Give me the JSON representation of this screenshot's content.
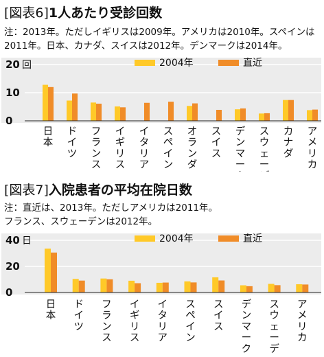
{
  "chart_data": [
    {
      "type": "bar",
      "tag": "[図表6]",
      "title": "1人あたり受診回数",
      "notes": [
        "注：2013年。ただしイギリスは2009年。アメリカは2010年。スペインは",
        "2011年。日本、カナダ、スイスは2012年。デンマークは2014年。"
      ],
      "unit": "回",
      "ylim": [
        0,
        20
      ],
      "yticks": [
        0,
        10,
        20
      ],
      "grid": true,
      "legend_position": "top-right",
      "categories": [
        "日本",
        "ドイツ",
        "フランス",
        "イギリス",
        "イタリア",
        "スペイン",
        "オランダ",
        "スイス",
        "デンマーク",
        "スウェーデン",
        "カナダ",
        "アメリカ"
      ],
      "series": [
        {
          "name": "2004年",
          "color": "#FFC928",
          "values": [
            12.8,
            7.2,
            6.5,
            5.1,
            null,
            null,
            5.3,
            null,
            4.1,
            2.6,
            7.4,
            3.8
          ]
        },
        {
          "name": "直近",
          "color": "#F08C28",
          "values": [
            12.0,
            9.7,
            6.1,
            4.8,
            6.4,
            6.8,
            6.2,
            3.9,
            4.4,
            2.7,
            7.4,
            4.0
          ]
        }
      ]
    },
    {
      "type": "bar",
      "tag": "[図表7]",
      "title": "入院患者の平均在院日数",
      "notes": [
        "注：直近は、2013年。ただしアメリカは2011年。",
        "フランス、スウェーデンは2012年。"
      ],
      "unit": "日",
      "ylim": [
        0,
        40
      ],
      "yticks": [
        0,
        20,
        40
      ],
      "grid": true,
      "legend_position": "top-right",
      "categories": [
        "日本",
        "ドイツ",
        "フランス",
        "イギリス",
        "イタリア",
        "スペイン",
        "スイス",
        "デンマーク",
        "スウェーデン",
        "アメリカ"
      ],
      "series": [
        {
          "name": "2004年",
          "color": "#FFC928",
          "values": [
            33.6,
            10.4,
            10.7,
            9.0,
            7.4,
            8.5,
            11.6,
            5.5,
            6.6,
            6.3
          ]
        },
        {
          "name": "直近",
          "color": "#F08C28",
          "values": [
            30.6,
            9.1,
            10.1,
            7.1,
            7.6,
            7.7,
            9.2,
            4.8,
            5.6,
            6.1
          ]
        }
      ]
    }
  ]
}
